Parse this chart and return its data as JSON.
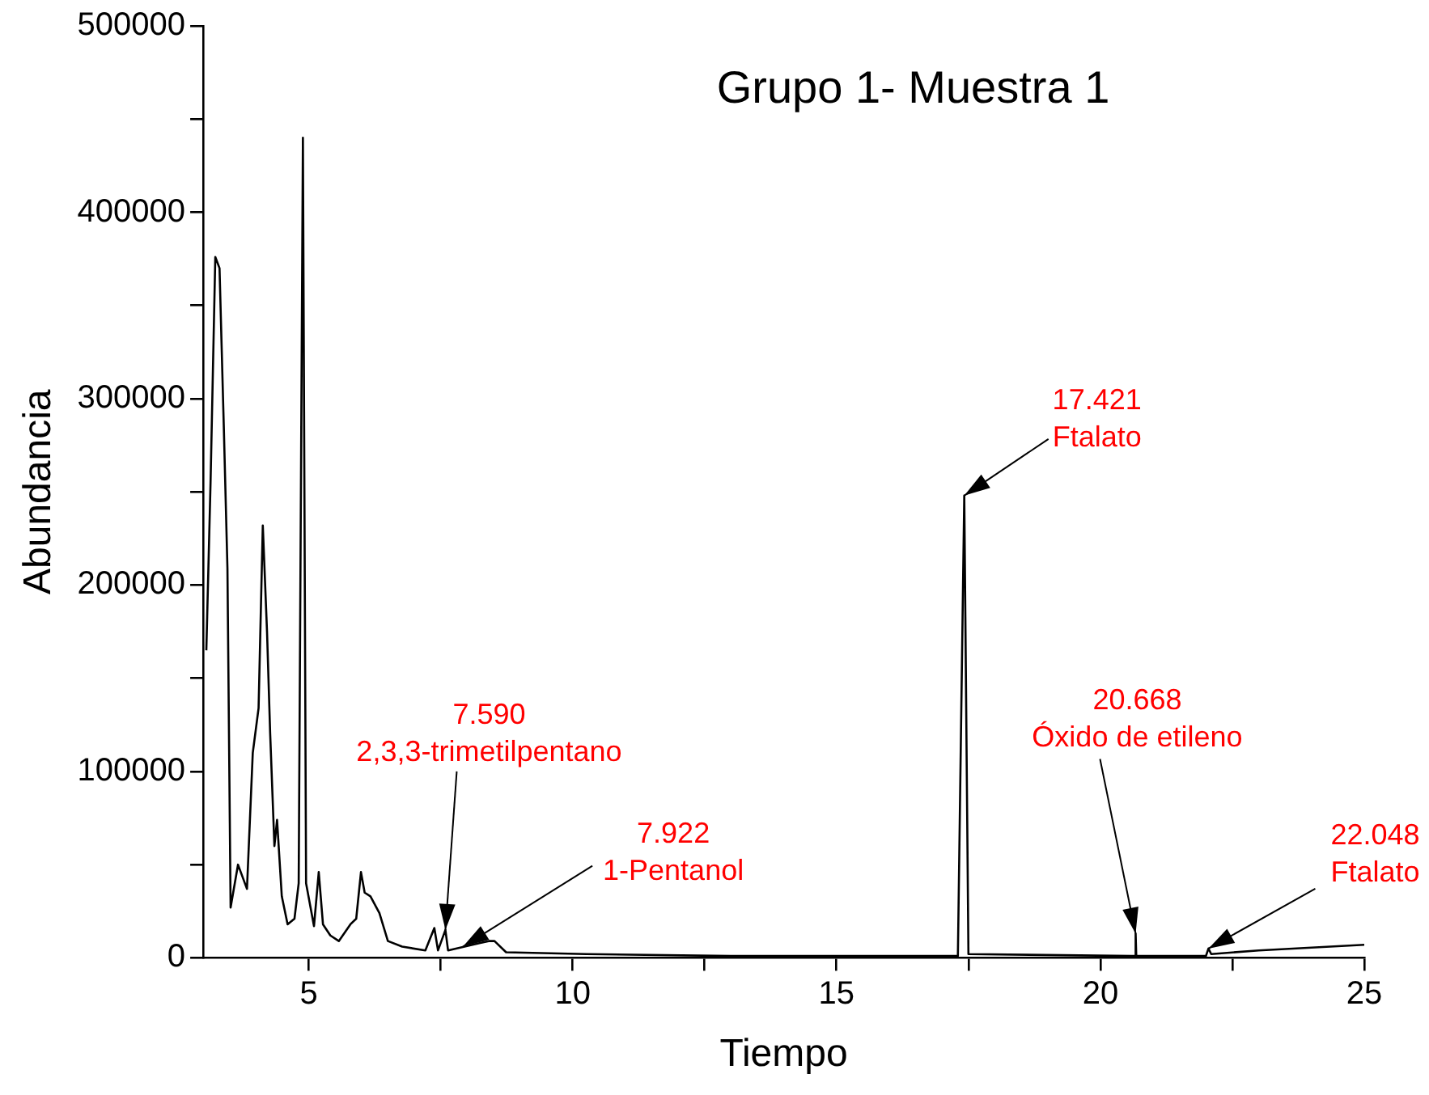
{
  "chart_data": {
    "type": "line",
    "title": "Grupo 1- Muestra 1",
    "xlabel": "Tiempo",
    "ylabel": "Abundancia",
    "x": [
      3.06,
      3.14,
      3.23,
      3.31,
      3.39,
      3.46,
      3.52,
      3.66,
      3.83,
      3.94,
      4.05,
      4.13,
      4.21,
      4.27,
      4.35,
      4.4,
      4.49,
      4.6,
      4.73,
      4.81,
      4.89,
      4.95,
      5.1,
      5.19,
      5.27,
      5.41,
      5.57,
      5.79,
      5.9,
      5.99,
      6.06,
      6.17,
      6.34,
      6.5,
      6.77,
      7.21,
      7.38,
      7.45,
      7.59,
      7.64,
      8.25,
      8.41,
      8.52,
      8.74,
      10.26,
      13,
      17.3,
      17.421,
      17.5,
      20.6,
      20.66,
      20.668,
      20.68,
      22,
      22.048,
      22.1,
      23,
      25
    ],
    "series": [
      {
        "color": "#000000",
        "values": [
          165000,
          255000,
          376000,
          370000,
          286000,
          209000,
          27000,
          50000,
          37000,
          110000,
          134000,
          232000,
          175000,
          120000,
          60000,
          74000,
          33000,
          18000,
          21000,
          40000,
          440000,
          40000,
          17000,
          46000,
          18000,
          12000,
          9000,
          18000,
          21000,
          46000,
          35000,
          33000,
          24000,
          9000,
          6000,
          4000,
          16000,
          4000,
          15000,
          4000,
          8000,
          9000,
          9000,
          3000,
          2000,
          1000,
          1000,
          248000,
          2000,
          1000,
          1000,
          13000,
          1000,
          1000,
          5000,
          2000,
          4000,
          7000
        ]
      }
    ],
    "xlim": [
      3,
      25
    ],
    "ylim": [
      0,
      500000
    ],
    "xticks": [
      5,
      {
        "value": 7.5,
        "label": null
      },
      10,
      {
        "value": 12.5,
        "label": null
      },
      15,
      {
        "value": 17.5,
        "label": null
      },
      20,
      {
        "value": 22.5,
        "label": null
      },
      25
    ],
    "yticks": [
      0,
      {
        "value": 50000,
        "label": null
      },
      100000,
      {
        "value": 150000,
        "label": null
      },
      200000,
      {
        "value": 250000,
        "label": null
      },
      300000,
      {
        "value": 350000,
        "label": null
      },
      400000,
      {
        "value": 450000,
        "label": null
      },
      500000
    ],
    "grid": false,
    "legend": false,
    "marker": "none",
    "line_style": "solid",
    "annotations": [
      {
        "text": "7.590\n2,3,3-trimetilpentano",
        "x": 7.59,
        "y": 15000
      },
      {
        "text": "7.922\n1-Pentanol",
        "x": 7.922,
        "y": 6000
      },
      {
        "text": "17.421\nFtalato",
        "x": 17.421,
        "y": 248000
      },
      {
        "text": "20.668\nÓxido de etileno",
        "x": 20.668,
        "y": 13000
      },
      {
        "text": "22.048\nFtalato",
        "x": 22.048,
        "y": 5000
      }
    ]
  }
}
